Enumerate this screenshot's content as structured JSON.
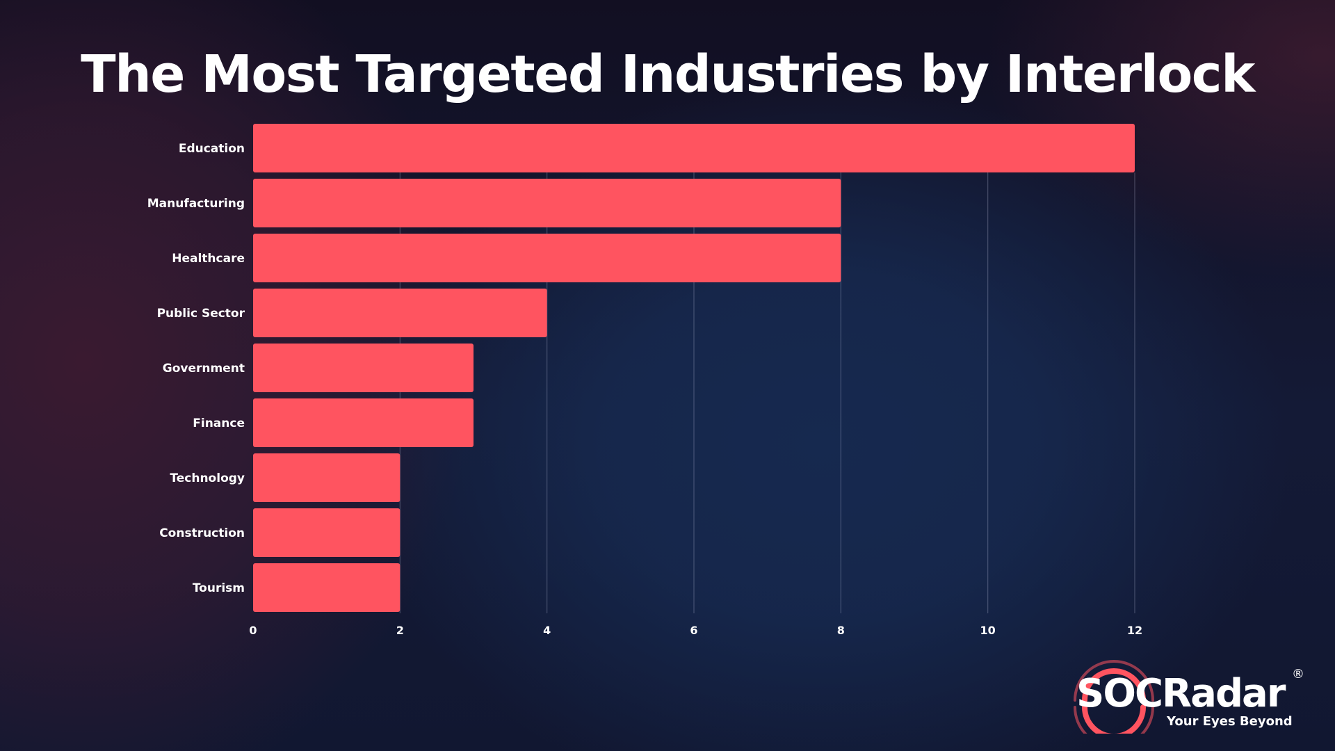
{
  "chart_data": {
    "type": "bar",
    "orientation": "horizontal",
    "title": "The Most Targeted Industries by Interlock",
    "categories": [
      "Education",
      "Manufacturing",
      "Healthcare",
      "Public Sector",
      "Government",
      "Finance",
      "Technology",
      "Construction",
      "Tourism"
    ],
    "values": [
      12,
      8,
      8,
      4,
      3,
      3,
      2,
      2,
      2
    ],
    "xlim": [
      0,
      12
    ],
    "xticks": [
      0,
      2,
      4,
      6,
      8,
      10,
      12
    ],
    "grid": true,
    "bar_color": "#ff5460"
  },
  "logo": {
    "wordmark": "SOCRadar",
    "registered": "®",
    "tagline": "Your Eyes Beyond",
    "accent_color": "#ff5460"
  }
}
